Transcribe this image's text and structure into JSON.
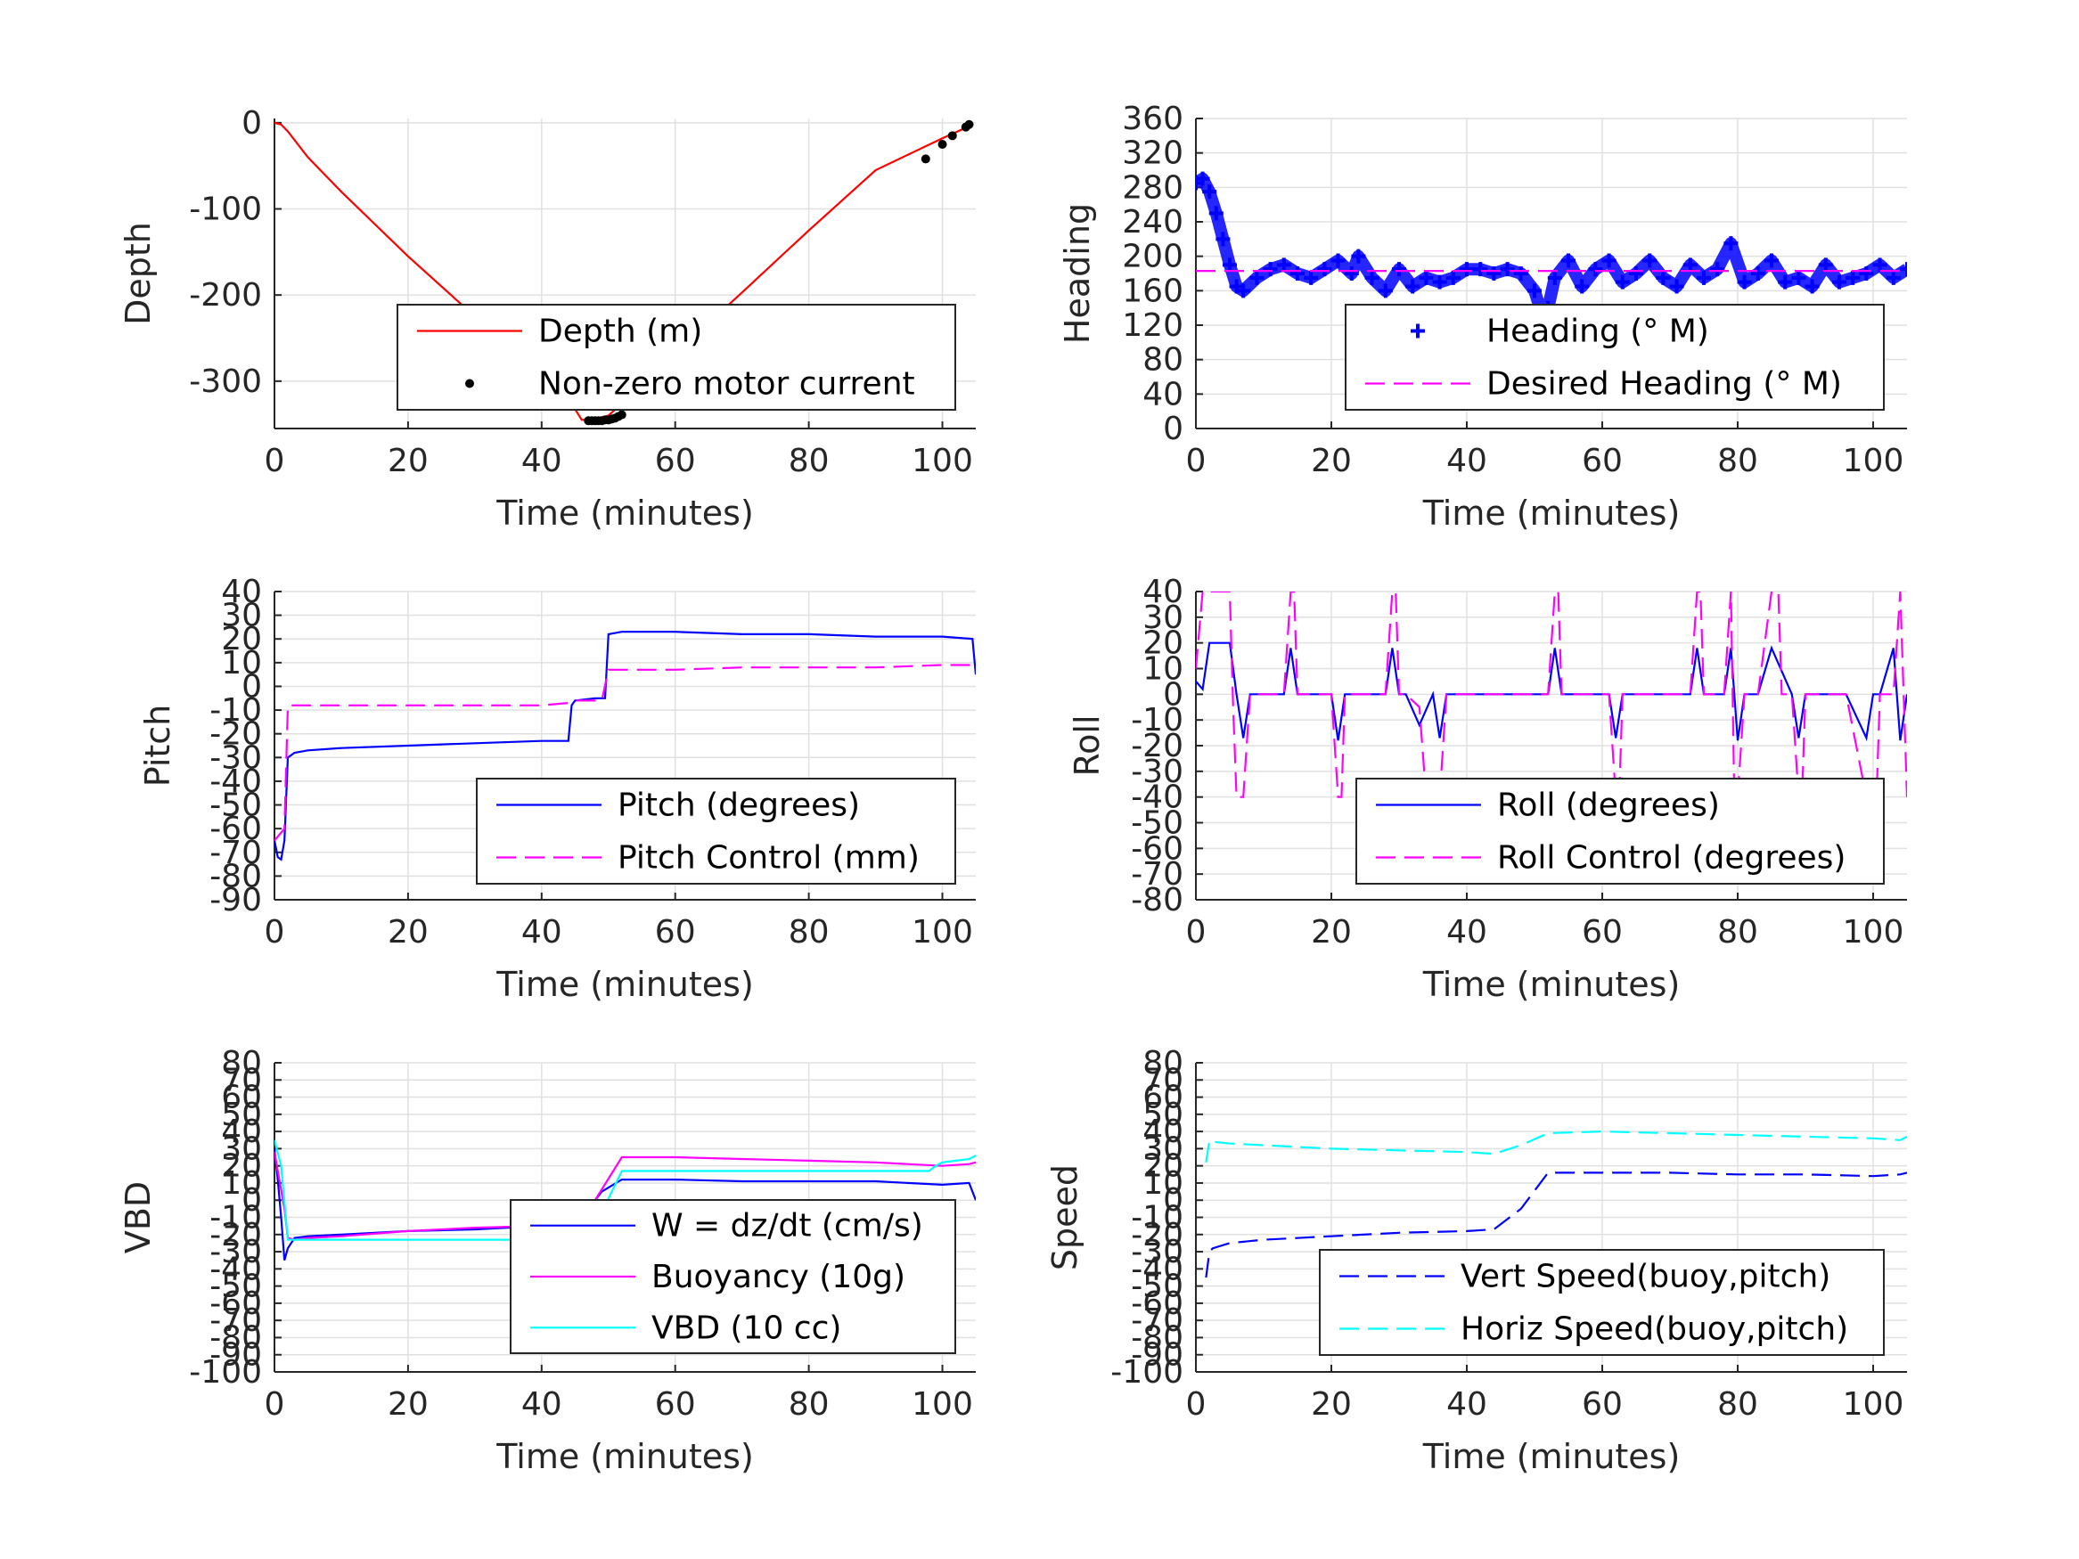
{
  "figure": {
    "background": "#ffffff",
    "grid_color": "#e0e0e0",
    "axis_color": "#262626"
  },
  "chart_data": [
    {
      "id": "depth",
      "type": "line",
      "title": "",
      "xlabel": "Time (minutes)",
      "ylabel": "Depth",
      "xlim": [
        0,
        105
      ],
      "ylim": [
        -355,
        5
      ],
      "xticks": [
        0,
        20,
        40,
        60,
        80,
        100
      ],
      "yticks": [
        -300,
        -200,
        -100,
        0
      ],
      "grid": true,
      "legend_position": "lower-right",
      "series": [
        {
          "name": "Depth (m)",
          "color": "#ff0000",
          "style": "solid",
          "x": [
            0,
            1,
            2,
            5,
            10,
            20,
            30,
            40,
            44,
            46,
            47.5,
            50,
            60,
            70,
            80,
            90,
            100,
            104
          ],
          "y": [
            0,
            -2,
            -10,
            -40,
            -80,
            -155,
            -225,
            -295,
            -320,
            -345,
            -345,
            -340,
            -268,
            -197,
            -125,
            -55,
            -18,
            -4
          ]
        },
        {
          "name": "Non-zero motor current",
          "color": "#000000",
          "style": "dots",
          "x": [
            47,
            47.5,
            48,
            48.5,
            49,
            49.5,
            50,
            50.5,
            51,
            51.5,
            52,
            97.5,
            100,
            101.5,
            103.5,
            104
          ],
          "y": [
            -346,
            -346,
            -346,
            -346,
            -346,
            -345,
            -345,
            -344,
            -343,
            -341,
            -339,
            -42,
            -25,
            -15,
            -5,
            -2
          ]
        }
      ]
    },
    {
      "id": "heading",
      "type": "scatter",
      "title": "",
      "xlabel": "Time (minutes)",
      "ylabel": "Heading",
      "xlim": [
        0,
        105
      ],
      "ylim": [
        0,
        360
      ],
      "xticks": [
        0,
        20,
        40,
        60,
        80,
        100
      ],
      "yticks": [
        0,
        40,
        80,
        120,
        160,
        200,
        240,
        280,
        320,
        360
      ],
      "grid": true,
      "legend_position": "lower-right",
      "series": [
        {
          "name": "Heading (° M)",
          "color": "#0000ff",
          "style": "plus",
          "x": [
            0,
            1,
            2,
            3,
            4,
            5,
            6,
            7,
            9,
            11,
            13,
            15,
            17,
            19,
            21,
            23,
            24,
            26,
            28,
            30,
            32,
            34,
            36,
            38,
            40,
            42,
            44,
            46,
            48,
            50,
            51,
            52,
            53,
            55,
            57,
            59,
            61,
            63,
            65,
            67,
            69,
            71,
            73,
            75,
            77,
            79,
            81,
            83,
            85,
            87,
            89,
            91,
            93,
            95,
            97,
            99,
            101,
            103,
            105
          ],
          "y": [
            285,
            290,
            275,
            250,
            220,
            190,
            165,
            160,
            175,
            185,
            190,
            180,
            175,
            185,
            195,
            180,
            200,
            175,
            160,
            185,
            165,
            175,
            170,
            175,
            185,
            185,
            180,
            185,
            180,
            160,
            135,
            140,
            175,
            195,
            165,
            185,
            195,
            170,
            180,
            195,
            175,
            165,
            190,
            175,
            185,
            215,
            170,
            180,
            195,
            170,
            175,
            165,
            190,
            170,
            175,
            180,
            190,
            175,
            185
          ]
        },
        {
          "name": "Desired Heading (° M)",
          "color": "#ff00ff",
          "style": "dashed",
          "x": [
            0,
            105
          ],
          "y": [
            183,
            183
          ]
        }
      ]
    },
    {
      "id": "pitch",
      "type": "line",
      "title": "",
      "xlabel": "Time (minutes)",
      "ylabel": "Pitch",
      "xlim": [
        0,
        105
      ],
      "ylim": [
        -90,
        40
      ],
      "xticks": [
        0,
        20,
        40,
        60,
        80,
        100
      ],
      "yticks": [
        -90,
        -80,
        -70,
        -60,
        -50,
        -40,
        -30,
        -20,
        -10,
        0,
        10,
        20,
        30,
        40
      ],
      "grid": true,
      "legend_position": "lower-right",
      "series": [
        {
          "name": "Pitch (degrees)",
          "color": "#0000ff",
          "style": "solid",
          "x": [
            0,
            0.5,
            1,
            1.5,
            2,
            3,
            5,
            10,
            20,
            30,
            40,
            44,
            44.5,
            45,
            48,
            49.5,
            50,
            52,
            60,
            70,
            80,
            90,
            100,
            104.5,
            105
          ],
          "y": [
            -65,
            -72,
            -73,
            -65,
            -30,
            -28,
            -27,
            -26,
            -25,
            -24,
            -23,
            -23,
            -8,
            -6,
            -5,
            -5,
            22,
            23,
            23,
            22,
            22,
            21,
            21,
            20,
            5
          ]
        },
        {
          "name": "Pitch Control (mm)",
          "color": "#ff00ff",
          "style": "dashed",
          "x": [
            0,
            1.5,
            2,
            10,
            20,
            30,
            40,
            44,
            45,
            49,
            50,
            60,
            70,
            80,
            90,
            100,
            105
          ],
          "y": [
            -65,
            -60,
            -8,
            -8,
            -8,
            -8,
            -8,
            -7,
            -6,
            -6,
            7,
            7,
            8,
            8,
            8,
            9,
            9
          ]
        }
      ]
    },
    {
      "id": "roll",
      "type": "line",
      "title": "",
      "xlabel": "Time (minutes)",
      "ylabel": "Roll",
      "xlim": [
        0,
        105
      ],
      "ylim": [
        -80,
        40
      ],
      "xticks": [
        0,
        20,
        40,
        60,
        80,
        100
      ],
      "yticks": [
        -80,
        -70,
        -60,
        -50,
        -40,
        -30,
        -20,
        -10,
        0,
        10,
        20,
        30,
        40
      ],
      "grid": true,
      "legend_position": "lower-right",
      "series": [
        {
          "name": "Roll (degrees)",
          "color": "#0000ff",
          "style": "solid",
          "x": [
            0,
            1,
            2,
            3,
            5,
            6,
            7,
            8,
            10,
            13,
            14,
            15,
            17,
            20,
            21,
            22,
            25,
            28,
            29,
            30,
            31,
            33,
            35,
            36,
            37,
            40,
            43,
            46,
            52,
            53,
            54,
            57,
            61,
            62,
            63,
            65,
            68,
            73,
            74,
            75,
            76,
            78,
            79,
            80,
            81,
            82,
            83,
            85,
            88,
            89,
            90,
            93,
            96,
            99,
            100,
            101,
            103,
            104,
            105
          ],
          "y": [
            5,
            2,
            20,
            20,
            20,
            0,
            -17,
            0,
            0,
            0,
            18,
            0,
            0,
            0,
            -18,
            0,
            0,
            0,
            18,
            0,
            0,
            -12,
            0,
            -17,
            0,
            0,
            0,
            0,
            0,
            18,
            0,
            0,
            0,
            -17,
            0,
            0,
            0,
            0,
            18,
            0,
            0,
            0,
            18,
            -18,
            0,
            0,
            0,
            18,
            0,
            -17,
            0,
            0,
            0,
            -17,
            0,
            0,
            18,
            -18,
            0
          ]
        },
        {
          "name": "Roll Control (degrees)",
          "color": "#ff00ff",
          "style": "dashed",
          "x": [
            0,
            1,
            2,
            3,
            5,
            5.5,
            6,
            7,
            8,
            10,
            13,
            14,
            14.5,
            15,
            17,
            20,
            21,
            21.5,
            22,
            25,
            28,
            29,
            29.5,
            30,
            31,
            33,
            34,
            35,
            36,
            37,
            40,
            43,
            46,
            52,
            53,
            53.5,
            54,
            57,
            61,
            62,
            62.5,
            63,
            65,
            68,
            73,
            74,
            74.5,
            75,
            76,
            78,
            79,
            79.5,
            80,
            81,
            82,
            83,
            85,
            86,
            86.5,
            88,
            89,
            89.5,
            90,
            93,
            96,
            99,
            100,
            100.5,
            101,
            103,
            104,
            105
          ],
          "y": [
            10,
            40,
            40,
            40,
            40,
            -5,
            -40,
            -40,
            0,
            0,
            0,
            40,
            40,
            0,
            0,
            0,
            -40,
            -40,
            0,
            0,
            0,
            40,
            40,
            0,
            0,
            -5,
            -40,
            -40,
            -40,
            0,
            0,
            0,
            0,
            0,
            40,
            40,
            0,
            0,
            0,
            -40,
            -40,
            0,
            0,
            0,
            0,
            40,
            40,
            0,
            0,
            0,
            40,
            -40,
            -40,
            0,
            0,
            0,
            40,
            40,
            0,
            0,
            -40,
            -40,
            0,
            0,
            0,
            -40,
            -40,
            -40,
            0,
            0,
            40,
            -40
          ]
        }
      ]
    },
    {
      "id": "vbd",
      "type": "line",
      "title": "",
      "xlabel": "Time (minutes)",
      "ylabel": "VBD",
      "xlim": [
        0,
        105
      ],
      "ylim": [
        -100,
        80
      ],
      "xticks": [
        0,
        20,
        40,
        60,
        80,
        100
      ],
      "yticks": [
        -100,
        -90,
        -80,
        -70,
        -60,
        -50,
        -40,
        -30,
        -20,
        -10,
        0,
        10,
        20,
        30,
        40,
        50,
        60,
        70,
        80
      ],
      "grid": true,
      "legend_position": "lower-right",
      "series": [
        {
          "name": "W = dz/dt (cm/s)",
          "color": "#0000ff",
          "style": "solid",
          "x": [
            0,
            0.5,
            1,
            1.5,
            2,
            3,
            5,
            10,
            20,
            30,
            40,
            44,
            47,
            49,
            52,
            60,
            70,
            80,
            90,
            100,
            104,
            105
          ],
          "y": [
            30,
            12,
            -10,
            -35,
            -28,
            -22,
            -21,
            -20,
            -18,
            -17,
            -15,
            -14,
            -5,
            5,
            12,
            12,
            11,
            11,
            11,
            9,
            10,
            0
          ]
        },
        {
          "name": "Buoyancy (10g)",
          "color": "#ff00ff",
          "style": "solid",
          "x": [
            0,
            1.5,
            2,
            3,
            5,
            10,
            20,
            30,
            40,
            44,
            48,
            52,
            60,
            70,
            80,
            90,
            100,
            104,
            105
          ],
          "y": [
            28,
            -5,
            -22,
            -23,
            -22,
            -21,
            -18,
            -16,
            -15,
            -15,
            0,
            25,
            25,
            24,
            23,
            22,
            20,
            21,
            22
          ]
        },
        {
          "name": "VBD (10 cc)",
          "color": "#00ffff",
          "style": "solid",
          "x": [
            0,
            1,
            2,
            3,
            5,
            10,
            20,
            30,
            40,
            44,
            47,
            52,
            60,
            70,
            80,
            90,
            98,
            99,
            100,
            104,
            105
          ],
          "y": [
            35,
            20,
            -23,
            -23,
            -23,
            -23,
            -23,
            -23,
            -23,
            -23,
            -23,
            17,
            17,
            17,
            17,
            17,
            17,
            20,
            22,
            24,
            26
          ]
        }
      ]
    },
    {
      "id": "speed",
      "type": "line",
      "title": "",
      "xlabel": "Time (minutes)",
      "ylabel": "Speed",
      "xlim": [
        0,
        105
      ],
      "ylim": [
        -100,
        80
      ],
      "xticks": [
        0,
        20,
        40,
        60,
        80,
        100
      ],
      "yticks": [
        -100,
        -90,
        -80,
        -70,
        -60,
        -50,
        -40,
        -30,
        -20,
        -10,
        0,
        10,
        20,
        30,
        40,
        50,
        60,
        70,
        80
      ],
      "grid": true,
      "legend_position": "lower-right",
      "series": [
        {
          "name": "Vert Speed(buoy,pitch)",
          "color": "#0000ff",
          "style": "dashed",
          "x": [
            1.5,
            2,
            2.5,
            5,
            10,
            20,
            30,
            40,
            44,
            48,
            52,
            60,
            70,
            80,
            90,
            100,
            104,
            105
          ],
          "y": [
            -45,
            -30,
            -28,
            -25,
            -23,
            -21,
            -19,
            -18,
            -17,
            -5,
            16,
            16,
            16,
            15,
            15,
            14,
            15,
            16
          ]
        },
        {
          "name": "Horiz Speed(buoy,pitch)",
          "color": "#00ffff",
          "style": "dashed",
          "x": [
            1.5,
            2,
            2.5,
            5,
            10,
            20,
            30,
            40,
            44,
            48,
            52,
            60,
            70,
            80,
            90,
            100,
            104,
            105
          ],
          "y": [
            22,
            35,
            34,
            33,
            32,
            30,
            29,
            28,
            27,
            32,
            39,
            40,
            39,
            38,
            37,
            36,
            35,
            37
          ]
        }
      ]
    }
  ]
}
